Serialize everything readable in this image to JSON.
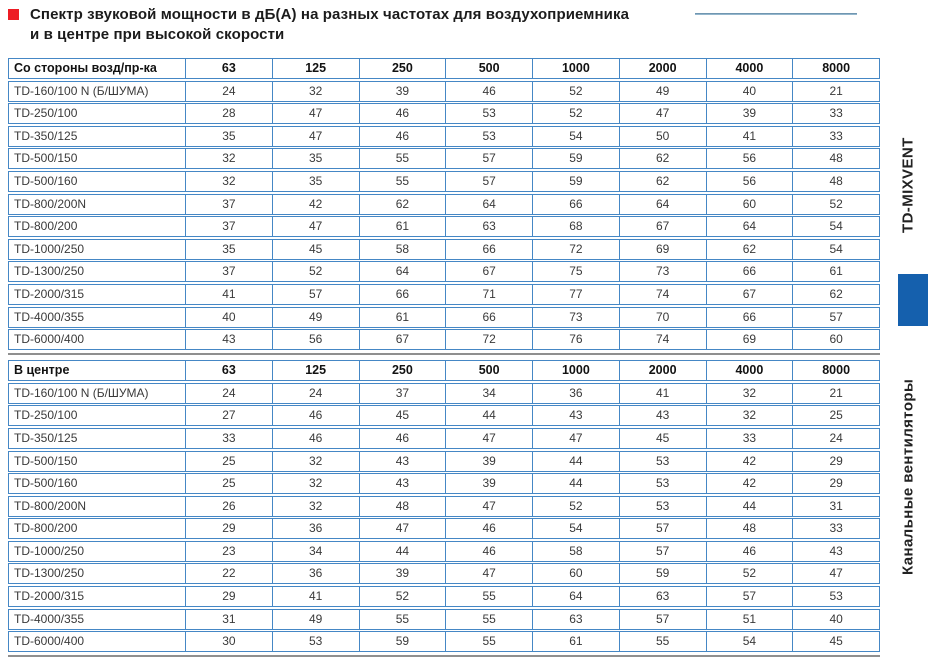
{
  "title": {
    "line1": "Спектр звуковой мощности в дБ(А) на разных частотах для воздухоприемника",
    "line2": "и в центре при высокой скорости"
  },
  "sidebar": {
    "top_label": "TD-MIXVENT",
    "bottom_label": "Канальные вентиляторы"
  },
  "colors": {
    "accent_red": "#ed1c24",
    "table_border_blue": "#4587c5",
    "sidebar_square_blue": "#1560ad"
  },
  "tables": [
    {
      "name": "intake-side",
      "header": [
        "Со стороны возд/пр-ка",
        "63",
        "125",
        "250",
        "500",
        "1000",
        "2000",
        "4000",
        "8000"
      ],
      "rows": [
        [
          "TD-160/100 N (Б/ШУМА)",
          24,
          32,
          39,
          46,
          52,
          49,
          40,
          21
        ],
        [
          "TD-250/100",
          28,
          47,
          46,
          53,
          52,
          47,
          39,
          33
        ],
        [
          "TD-350/125",
          35,
          47,
          46,
          53,
          54,
          50,
          41,
          33
        ],
        [
          "TD-500/150",
          32,
          35,
          55,
          57,
          59,
          62,
          56,
          48
        ],
        [
          "TD-500/160",
          32,
          35,
          55,
          57,
          59,
          62,
          56,
          48
        ],
        [
          "TD-800/200N",
          37,
          42,
          62,
          64,
          66,
          64,
          60,
          52
        ],
        [
          "TD-800/200",
          37,
          47,
          61,
          63,
          68,
          67,
          64,
          54
        ],
        [
          "TD-1000/250",
          35,
          45,
          58,
          66,
          72,
          69,
          62,
          54
        ],
        [
          "TD-1300/250",
          37,
          52,
          64,
          67,
          75,
          73,
          66,
          61
        ],
        [
          "TD-2000/315",
          41,
          57,
          66,
          71,
          77,
          74,
          67,
          62
        ],
        [
          "TD-4000/355",
          40,
          49,
          61,
          66,
          73,
          70,
          66,
          57
        ],
        [
          "TD-6000/400",
          43,
          56,
          67,
          72,
          76,
          74,
          69,
          60
        ]
      ]
    },
    {
      "name": "center",
      "header": [
        "В центре",
        "63",
        "125",
        "250",
        "500",
        "1000",
        "2000",
        "4000",
        "8000"
      ],
      "rows": [
        [
          "TD-160/100 N (Б/ШУМА)",
          24,
          24,
          37,
          34,
          36,
          41,
          32,
          21
        ],
        [
          "TD-250/100",
          27,
          46,
          45,
          44,
          43,
          43,
          32,
          25
        ],
        [
          "TD-350/125",
          33,
          46,
          46,
          47,
          47,
          45,
          33,
          24
        ],
        [
          "TD-500/150",
          25,
          32,
          43,
          39,
          44,
          53,
          42,
          29
        ],
        [
          "TD-500/160",
          25,
          32,
          43,
          39,
          44,
          53,
          42,
          29
        ],
        [
          "TD-800/200N",
          26,
          32,
          48,
          47,
          52,
          53,
          44,
          31
        ],
        [
          "TD-800/200",
          29,
          36,
          47,
          46,
          54,
          57,
          48,
          33
        ],
        [
          "TD-1000/250",
          23,
          34,
          44,
          46,
          58,
          57,
          46,
          43
        ],
        [
          "TD-1300/250",
          22,
          36,
          39,
          47,
          60,
          59,
          52,
          47
        ],
        [
          "TD-2000/315",
          29,
          41,
          52,
          55,
          64,
          63,
          57,
          53
        ],
        [
          "TD-4000/355",
          31,
          49,
          55,
          55,
          63,
          57,
          51,
          40
        ],
        [
          "TD-6000/400",
          30,
          53,
          59,
          55,
          61,
          55,
          54,
          45
        ]
      ]
    }
  ]
}
